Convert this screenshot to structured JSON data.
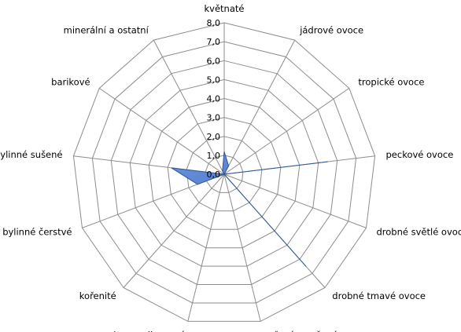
{
  "chart_data": {
    "type": "radar",
    "title": "",
    "categories": [
      "květnaté",
      "jádrové ovoce",
      "tropické ovoce",
      "peckové ovoce",
      "drobné světlé ovoce",
      "drobné tmavé ovoce",
      "vařené a sušené ovoce",
      "karamelizované",
      "kořenité",
      "bylinné čerstvé",
      "bylinné sušené",
      "barikové",
      "minerální a ostatní"
    ],
    "series": [
      {
        "values": [
          1.2,
          0.5,
          0.0,
          5.5,
          0.0,
          6.5,
          0.0,
          0.0,
          0.0,
          1.5,
          2.8,
          0.0,
          0.2
        ],
        "color": "#4472c4"
      }
    ],
    "rlim": [
      0,
      8
    ],
    "ticks": [
      "0,0",
      "1,0",
      "2,0",
      "3,0",
      "4,0",
      "5,0",
      "6,0",
      "7,0",
      "8,0"
    ],
    "grid": true
  }
}
